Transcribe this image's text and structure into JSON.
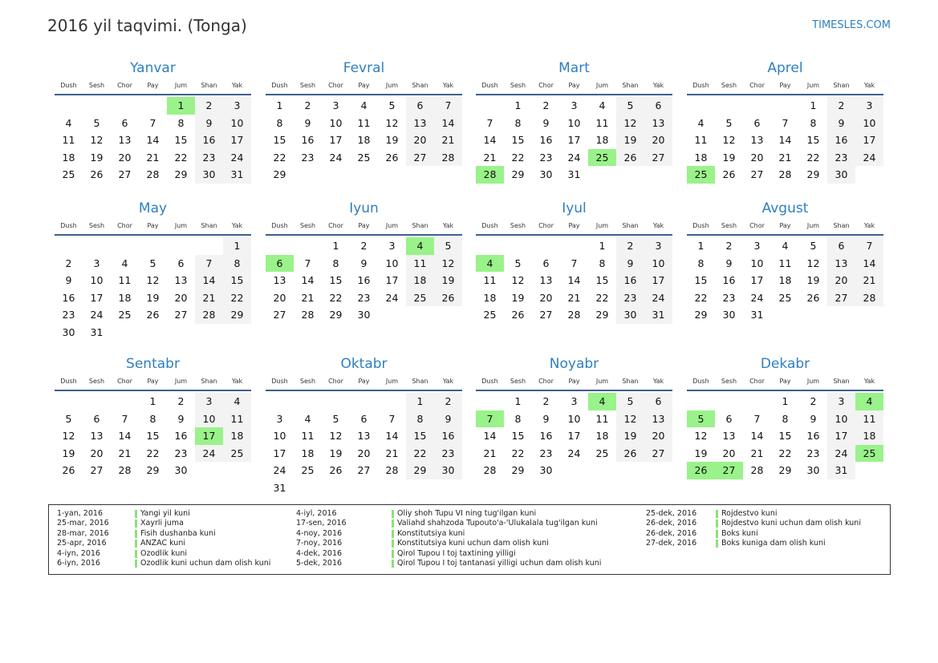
{
  "header": {
    "title": "2016 yil taqvimi. (Tonga)",
    "brand": "TIMESLES.COM"
  },
  "year": 2016,
  "weekdays": [
    "Dush",
    "Sesh",
    "Chor",
    "Pay",
    "Jum",
    "Shan",
    "Yak"
  ],
  "months": [
    "Yanvar",
    "Fevral",
    "Mart",
    "Aprel",
    "May",
    "Iyun",
    "Iyul",
    "Avgust",
    "Sentabr",
    "Oktabr",
    "Noyabr",
    "Dekabr"
  ],
  "colors": {
    "holiday": "#9af28a",
    "weekend": "#f3f3f3",
    "accent": "#2f7fc1"
  },
  "holidays": [
    {
      "date": "1-yan, 2016",
      "name": "Yangi yil kuni",
      "m": 1,
      "d": 1
    },
    {
      "date": "25-mar, 2016",
      "name": "Xayrli juma",
      "m": 3,
      "d": 25
    },
    {
      "date": "28-mar, 2016",
      "name": "Fisih dushanba kuni",
      "m": 3,
      "d": 28
    },
    {
      "date": "25-apr, 2016",
      "name": "ANZAC kuni",
      "m": 4,
      "d": 25
    },
    {
      "date": "4-iyn, 2016",
      "name": "Ozodlik kuni",
      "m": 6,
      "d": 4
    },
    {
      "date": "6-iyn, 2016",
      "name": "Ozodlik kuni uchun dam olish kuni",
      "m": 6,
      "d": 6
    },
    {
      "date": "4-iyl, 2016",
      "name": "Oliy shoh Tupu VI ning tug'ilgan kuni",
      "m": 7,
      "d": 4
    },
    {
      "date": "17-sen, 2016",
      "name": "Valiahd shahzoda Tupouto'a-'Ulukalala tug'ilgan kuni",
      "m": 9,
      "d": 17
    },
    {
      "date": "4-noy, 2016",
      "name": "Konstitutsiya kuni",
      "m": 11,
      "d": 4
    },
    {
      "date": "7-noy, 2016",
      "name": "Konstitutsiya kuni uchun dam olish kuni",
      "m": 11,
      "d": 7
    },
    {
      "date": "4-dek, 2016",
      "name": "Qirol Tupou I toj taxtining yilligi",
      "m": 12,
      "d": 4
    },
    {
      "date": "5-dek, 2016",
      "name": "Qirol Tupou I toj tantanasi yilligi uchun dam olish kuni",
      "m": 12,
      "d": 5
    },
    {
      "date": "25-dek, 2016",
      "name": "Rojdestvo kuni",
      "m": 12,
      "d": 25
    },
    {
      "date": "26-dek, 2016",
      "name": "Rojdestvo kuni uchun dam olish kuni",
      "m": 12,
      "d": 26
    },
    {
      "date": "26-dek, 2016",
      "name": "Boks kuni",
      "m": 12,
      "d": 26
    },
    {
      "date": "27-dek, 2016",
      "name": "Boks kuniga dam olish kuni",
      "m": 12,
      "d": 27
    }
  ]
}
